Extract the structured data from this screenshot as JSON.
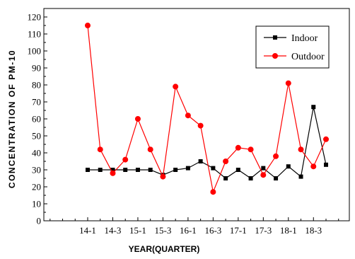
{
  "chart_data": {
    "type": "line",
    "title": "",
    "xlabel": "YEAR(QUARTER)",
    "ylabel": "CONCENTRATION OF PM-10",
    "ylim": [
      0,
      125
    ],
    "yticks": [
      0,
      10,
      20,
      30,
      40,
      50,
      60,
      70,
      80,
      90,
      100,
      110,
      120
    ],
    "categories": [
      "14-1",
      "14-2",
      "14-3",
      "14-4",
      "15-1",
      "15-2",
      "15-3",
      "15-4",
      "16-1",
      "16-2",
      "16-3",
      "16-4",
      "17-1",
      "17-2",
      "17-3",
      "17-4",
      "18-1",
      "18-2",
      "18-3",
      "18-4"
    ],
    "xtick_labels": [
      "14-1",
      "14-3",
      "15-1",
      "15-3",
      "16-1",
      "16-3",
      "17-1",
      "17-3",
      "18-1",
      "18-3"
    ],
    "grid": false,
    "legend_position": "top-right",
    "series": [
      {
        "name": "Indoor",
        "color": "#000000",
        "marker": "square",
        "values": [
          30,
          30,
          30,
          30,
          30,
          30,
          27,
          30,
          31,
          35,
          31,
          25,
          30,
          25,
          31,
          25,
          32,
          26,
          67,
          33
        ]
      },
      {
        "name": "Outdoor",
        "color": "#ff0000",
        "marker": "circle",
        "values": [
          115,
          42,
          28,
          36,
          60,
          42,
          26,
          79,
          62,
          56,
          17,
          35,
          43,
          42,
          27,
          38,
          81,
          42,
          32,
          48
        ]
      }
    ]
  }
}
